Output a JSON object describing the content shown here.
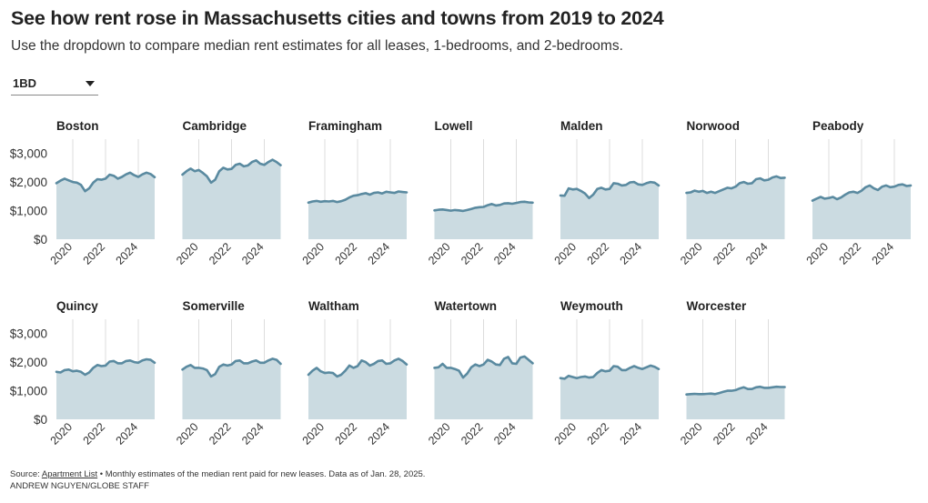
{
  "header": {
    "title": "See how rent rose in Massachusetts cities and towns from 2019 to 2024",
    "subtitle": "Use the dropdown to compare median rent estimates for all leases, 1-bedrooms, and 2-bedrooms."
  },
  "dropdown": {
    "selected": "1BD"
  },
  "footer": {
    "source_prefix": "Source:",
    "source_link": "Apartment List",
    "source_note": "• Monthly estimates of the median rent paid for new leases. Data as of Jan. 28, 2025.",
    "credit": "ANDREW NGUYEN/GLOBE STAFF"
  },
  "colors": {
    "line": "#5a8aa0",
    "area": "#cbdbe1",
    "grid": "#dddddd",
    "text": "#222222"
  },
  "chart_data": {
    "type": "area",
    "layout": "small-multiples",
    "x_range": [
      2019.0,
      2025.0
    ],
    "x_ticks": [
      2020,
      2022,
      2024
    ],
    "x_tick_labels": [
      "2020",
      "2022",
      "2024"
    ],
    "ylim": [
      0,
      3500
    ],
    "y_ticks": [
      0,
      1000,
      2000,
      3000
    ],
    "y_tick_labels": [
      "$0",
      "$1,000",
      "$2,000",
      "$3,000"
    ],
    "series": [
      {
        "name": "Boston",
        "x": [
          2019.0,
          2019.25,
          2019.5,
          2019.75,
          2020.0,
          2020.25,
          2020.5,
          2020.75,
          2021.0,
          2021.25,
          2021.5,
          2021.75,
          2022.0,
          2022.25,
          2022.5,
          2022.75,
          2023.0,
          2023.25,
          2023.5,
          2023.75,
          2024.0,
          2024.25,
          2024.5,
          2024.75,
          2025.0
        ],
        "values": [
          1960,
          2050,
          2120,
          2060,
          2000,
          1980,
          1900,
          1680,
          1780,
          1980,
          2100,
          2080,
          2120,
          2260,
          2220,
          2120,
          2180,
          2270,
          2330,
          2240,
          2180,
          2270,
          2330,
          2280,
          2170
        ]
      },
      {
        "name": "Cambridge",
        "x": [
          2019.0,
          2019.25,
          2019.5,
          2019.75,
          2020.0,
          2020.25,
          2020.5,
          2020.75,
          2021.0,
          2021.25,
          2021.5,
          2021.75,
          2022.0,
          2022.25,
          2022.5,
          2022.75,
          2023.0,
          2023.25,
          2023.5,
          2023.75,
          2024.0,
          2024.25,
          2024.5,
          2024.75,
          2025.0
        ],
        "values": [
          2260,
          2380,
          2470,
          2380,
          2420,
          2320,
          2200,
          1980,
          2080,
          2380,
          2500,
          2440,
          2460,
          2600,
          2640,
          2550,
          2580,
          2700,
          2760,
          2640,
          2600,
          2700,
          2780,
          2700,
          2590
        ]
      },
      {
        "name": "Framingham",
        "x": [
          2019.0,
          2019.25,
          2019.5,
          2019.75,
          2020.0,
          2020.25,
          2020.5,
          2020.75,
          2021.0,
          2021.25,
          2021.5,
          2021.75,
          2022.0,
          2022.25,
          2022.5,
          2022.75,
          2023.0,
          2023.25,
          2023.5,
          2023.75,
          2024.0,
          2024.25,
          2024.5,
          2024.75,
          2025.0
        ],
        "values": [
          1280,
          1320,
          1340,
          1310,
          1330,
          1320,
          1340,
          1300,
          1330,
          1380,
          1460,
          1520,
          1540,
          1580,
          1610,
          1560,
          1620,
          1640,
          1600,
          1660,
          1640,
          1620,
          1670,
          1650,
          1640
        ]
      },
      {
        "name": "Lowell",
        "x": [
          2019.0,
          2019.25,
          2019.5,
          2019.75,
          2020.0,
          2020.25,
          2020.5,
          2020.75,
          2021.0,
          2021.25,
          2021.5,
          2021.75,
          2022.0,
          2022.25,
          2022.5,
          2022.75,
          2023.0,
          2023.25,
          2023.5,
          2023.75,
          2024.0,
          2024.25,
          2024.5,
          2024.75,
          2025.0
        ],
        "values": [
          1010,
          1030,
          1040,
          1020,
          1000,
          1020,
          1010,
          990,
          1020,
          1060,
          1100,
          1120,
          1130,
          1190,
          1230,
          1180,
          1200,
          1250,
          1260,
          1240,
          1270,
          1300,
          1310,
          1290,
          1280
        ]
      },
      {
        "name": "Malden",
        "x": [
          2019.0,
          2019.25,
          2019.5,
          2019.75,
          2020.0,
          2020.25,
          2020.5,
          2020.75,
          2021.0,
          2021.25,
          2021.5,
          2021.75,
          2022.0,
          2022.25,
          2022.5,
          2022.75,
          2023.0,
          2023.25,
          2023.5,
          2023.75,
          2024.0,
          2024.25,
          2024.5,
          2024.75,
          2025.0
        ],
        "values": [
          1530,
          1520,
          1780,
          1740,
          1760,
          1690,
          1600,
          1440,
          1560,
          1760,
          1800,
          1740,
          1760,
          1960,
          1940,
          1880,
          1900,
          1990,
          2000,
          1920,
          1900,
          1960,
          2000,
          1980,
          1880
        ]
      },
      {
        "name": "Norwood",
        "x": [
          2019.0,
          2019.25,
          2019.5,
          2019.75,
          2020.0,
          2020.25,
          2020.5,
          2020.75,
          2021.0,
          2021.25,
          2021.5,
          2021.75,
          2022.0,
          2022.25,
          2022.5,
          2022.75,
          2023.0,
          2023.25,
          2023.5,
          2023.75,
          2024.0,
          2024.25,
          2024.5,
          2024.75,
          2025.0
        ],
        "values": [
          1620,
          1640,
          1700,
          1660,
          1690,
          1620,
          1660,
          1620,
          1680,
          1740,
          1800,
          1780,
          1840,
          1960,
          2000,
          1940,
          1960,
          2100,
          2130,
          2060,
          2080,
          2160,
          2200,
          2140,
          2150
        ]
      },
      {
        "name": "Peabody",
        "x": [
          2019.0,
          2019.25,
          2019.5,
          2019.75,
          2020.0,
          2020.25,
          2020.5,
          2020.75,
          2021.0,
          2021.25,
          2021.5,
          2021.75,
          2022.0,
          2022.25,
          2022.5,
          2022.75,
          2023.0,
          2023.25,
          2023.5,
          2023.75,
          2024.0,
          2024.25,
          2024.5,
          2024.75,
          2025.0
        ],
        "values": [
          1350,
          1420,
          1480,
          1420,
          1440,
          1480,
          1400,
          1460,
          1560,
          1640,
          1660,
          1620,
          1700,
          1820,
          1880,
          1780,
          1720,
          1840,
          1880,
          1820,
          1840,
          1900,
          1920,
          1860,
          1880
        ]
      },
      {
        "name": "Quincy",
        "x": [
          2019.0,
          2019.25,
          2019.5,
          2019.75,
          2020.0,
          2020.25,
          2020.5,
          2020.75,
          2021.0,
          2021.25,
          2021.5,
          2021.75,
          2022.0,
          2022.25,
          2022.5,
          2022.75,
          2023.0,
          2023.25,
          2023.5,
          2023.75,
          2024.0,
          2024.25,
          2024.5,
          2024.75,
          2025.0
        ],
        "values": [
          1660,
          1640,
          1720,
          1740,
          1680,
          1700,
          1660,
          1560,
          1640,
          1800,
          1900,
          1860,
          1880,
          2020,
          2040,
          1960,
          1960,
          2040,
          2060,
          2000,
          1980,
          2060,
          2100,
          2080,
          1980
        ]
      },
      {
        "name": "Somerville",
        "x": [
          2019.0,
          2019.25,
          2019.5,
          2019.75,
          2020.0,
          2020.25,
          2020.5,
          2020.75,
          2021.0,
          2021.25,
          2021.5,
          2021.75,
          2022.0,
          2022.25,
          2022.5,
          2022.75,
          2023.0,
          2023.25,
          2023.5,
          2023.75,
          2024.0,
          2024.25,
          2024.5,
          2024.75,
          2025.0
        ],
        "values": [
          1740,
          1840,
          1900,
          1800,
          1800,
          1780,
          1720,
          1500,
          1580,
          1840,
          1920,
          1880,
          1920,
          2040,
          2060,
          1960,
          1960,
          2020,
          2060,
          1980,
          1980,
          2060,
          2120,
          2080,
          1940
        ]
      },
      {
        "name": "Waltham",
        "x": [
          2019.0,
          2019.25,
          2019.5,
          2019.75,
          2020.0,
          2020.25,
          2020.5,
          2020.75,
          2021.0,
          2021.25,
          2021.5,
          2021.75,
          2022.0,
          2022.25,
          2022.5,
          2022.75,
          2023.0,
          2023.25,
          2023.5,
          2023.75,
          2024.0,
          2024.25,
          2024.5,
          2024.75,
          2025.0
        ],
        "values": [
          1560,
          1700,
          1800,
          1680,
          1620,
          1640,
          1620,
          1500,
          1560,
          1700,
          1880,
          1800,
          1860,
          2060,
          2000,
          1880,
          1940,
          2040,
          2060,
          1940,
          1960,
          2060,
          2120,
          2040,
          1920
        ]
      },
      {
        "name": "Watertown",
        "x": [
          2019.0,
          2019.25,
          2019.5,
          2019.75,
          2020.0,
          2020.25,
          2020.5,
          2020.75,
          2021.0,
          2021.25,
          2021.5,
          2021.75,
          2022.0,
          2022.25,
          2022.5,
          2022.75,
          2023.0,
          2023.25,
          2023.5,
          2023.75,
          2024.0,
          2024.25,
          2024.5,
          2024.75,
          2025.0
        ],
        "values": [
          1800,
          1820,
          1940,
          1800,
          1800,
          1760,
          1700,
          1460,
          1600,
          1820,
          1920,
          1860,
          1920,
          2080,
          2020,
          1920,
          1900,
          2120,
          2180,
          1960,
          1940,
          2160,
          2200,
          2080,
          1960
        ]
      },
      {
        "name": "Weymouth",
        "x": [
          2019.0,
          2019.25,
          2019.5,
          2019.75,
          2020.0,
          2020.25,
          2020.5,
          2020.75,
          2021.0,
          2021.25,
          2021.5,
          2021.75,
          2022.0,
          2022.25,
          2022.5,
          2022.75,
          2023.0,
          2023.25,
          2023.5,
          2023.75,
          2024.0,
          2024.25,
          2024.5,
          2024.75,
          2025.0
        ],
        "values": [
          1440,
          1420,
          1520,
          1480,
          1440,
          1480,
          1500,
          1460,
          1480,
          1620,
          1720,
          1680,
          1700,
          1860,
          1840,
          1720,
          1720,
          1800,
          1860,
          1800,
          1760,
          1820,
          1880,
          1840,
          1760
        ]
      },
      {
        "name": "Worcester",
        "x": [
          2019.0,
          2019.25,
          2019.5,
          2019.75,
          2020.0,
          2020.25,
          2020.5,
          2020.75,
          2021.0,
          2021.25,
          2021.5,
          2021.75,
          2022.0,
          2022.25,
          2022.5,
          2022.75,
          2023.0,
          2023.25,
          2023.5,
          2023.75,
          2024.0,
          2024.25,
          2024.5,
          2024.75,
          2025.0
        ],
        "values": [
          870,
          880,
          890,
          880,
          880,
          890,
          900,
          880,
          920,
          960,
          1000,
          1000,
          1020,
          1080,
          1120,
          1060,
          1060,
          1120,
          1140,
          1100,
          1100,
          1120,
          1140,
          1130,
          1130
        ]
      }
    ]
  }
}
